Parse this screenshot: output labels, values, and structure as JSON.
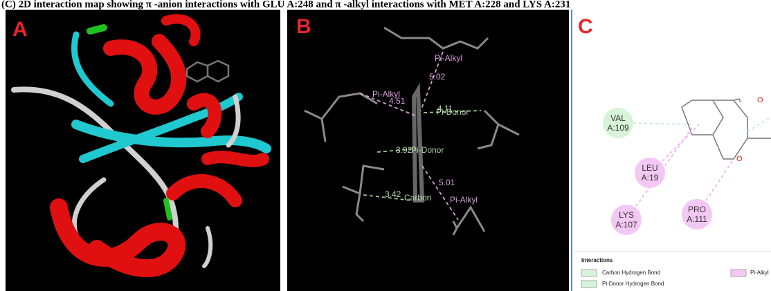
{
  "caption": "(C) 2D interaction map showing π -anion interactions with GLU A:248 and π -alkyl interactions with MET A:228 and LYS A:231",
  "panels": [
    {
      "label": "A"
    },
    {
      "label": "B",
      "labels": [
        "Pi-Alkyl",
        "5.02",
        "Pi-Alkyl",
        "4.51",
        "4.11",
        "Pi-Donor",
        "3.92",
        "Pi-Donor",
        "5.01",
        "Pi-Alkyl",
        "3.42",
        "Carbon"
      ]
    },
    {
      "label": "C",
      "residues": [
        {
          "name": "VAL",
          "id": "A:109"
        },
        {
          "name": "LEU",
          "id": "A:19"
        },
        {
          "name": "LYS",
          "id": "A:107"
        },
        {
          "name": "PRO",
          "id": "A:111"
        }
      ],
      "legend": {
        "title": "Interactions",
        "items": [
          "Carbon Hydrogen Bond",
          "Pi-Donor Hydrogen Bond",
          "Pi-Alkyl"
        ]
      }
    }
  ]
}
